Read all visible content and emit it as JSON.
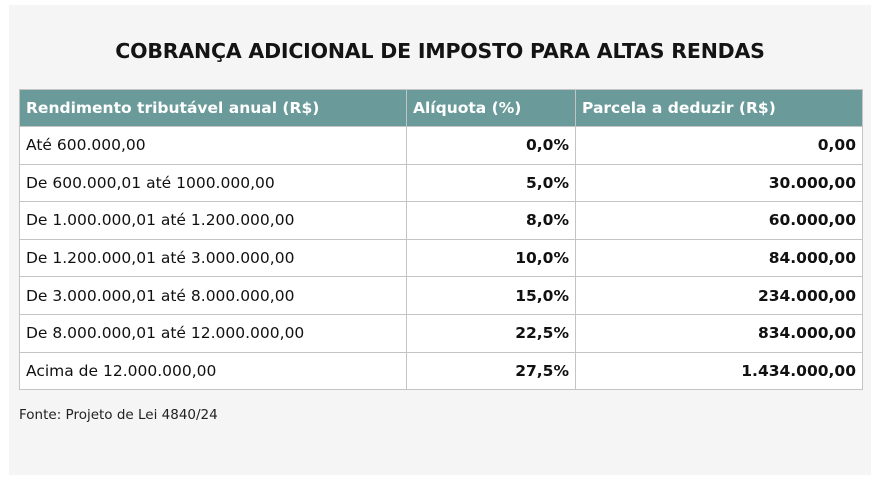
{
  "title": "COBRANÇA ADICIONAL DE IMPOSTO PARA ALTAS RENDAS",
  "table": {
    "headers": [
      "Rendimento tributável anual (R$)",
      "Alíquota (%)",
      "Parcela a deduzir (R$)"
    ],
    "rows": [
      [
        "Até 600.000,00",
        "0,0%",
        "0,00"
      ],
      [
        "De 600.000,01 até 1000.000,00",
        "5,0%",
        "30.000,00"
      ],
      [
        "De 1.000.000,01 até 1.200.000,00",
        "8,0%",
        "60.000,00"
      ],
      [
        "De 1.200.000,01 até 3.000.000,00",
        "10,0%",
        "84.000,00"
      ],
      [
        "De 3.000.000,01 até 8.000.000,00",
        "15,0%",
        "234.000,00"
      ],
      [
        "De 8.000.000,01 até 12.000.000,00",
        "22,5%",
        "834.000,00"
      ],
      [
        "Acima de 12.000.000,00",
        "27,5%",
        "1.434.000,00"
      ]
    ]
  },
  "source": "Fonte: Projeto de Lei 4840/24",
  "colors": {
    "header_background": "#6a9b9a",
    "panel_background": "#f5f5f5"
  }
}
